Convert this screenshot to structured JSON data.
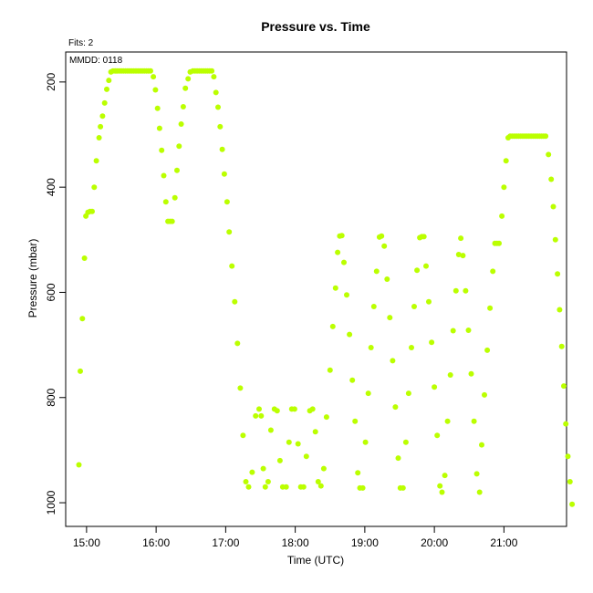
{
  "fits_label": "Fits: 2",
  "chart_data": {
    "type": "scatter",
    "title": "Pressure  vs. Time",
    "xlabel": "Time (UTC)",
    "ylabel": "Pressure (mbar)",
    "annotation": "MMDD: 0118",
    "xlim": [
      14.7,
      21.9
    ],
    "ylim": [
      1045,
      143
    ],
    "y_reversed": true,
    "x_ticks": [
      15,
      16,
      17,
      18,
      19,
      20,
      21
    ],
    "x_tick_labels": [
      "15:00",
      "16:00",
      "17:00",
      "18:00",
      "19:00",
      "20:00",
      "21:00"
    ],
    "y_ticks": [
      200,
      400,
      600,
      800,
      1000
    ],
    "y_tick_labels": [
      "200",
      "400",
      "600",
      "800",
      "1000"
    ],
    "grid": false,
    "color": "#bbff00",
    "series": [
      {
        "points": [
          [
            14.89,
            928
          ],
          [
            14.91,
            750
          ],
          [
            14.94,
            650
          ],
          [
            14.97,
            535
          ],
          [
            14.99,
            455
          ],
          [
            15.02,
            448
          ],
          [
            15.05,
            446
          ],
          [
            15.08,
            446
          ],
          [
            15.11,
            400
          ],
          [
            15.14,
            350
          ],
          [
            15.18,
            306
          ],
          [
            15.2,
            285
          ],
          [
            15.23,
            265
          ],
          [
            15.26,
            240
          ],
          [
            15.29,
            214
          ],
          [
            15.32,
            197
          ],
          [
            15.35,
            181
          ],
          [
            15.38,
            179
          ],
          [
            15.41,
            179
          ],
          [
            15.44,
            179
          ],
          [
            15.47,
            179
          ],
          [
            15.5,
            179
          ],
          [
            15.53,
            179
          ],
          [
            15.56,
            179
          ],
          [
            15.59,
            179
          ],
          [
            15.62,
            179
          ],
          [
            15.65,
            179
          ],
          [
            15.68,
            179
          ],
          [
            15.71,
            179
          ],
          [
            15.74,
            179
          ],
          [
            15.77,
            179
          ],
          [
            15.8,
            179
          ],
          [
            15.83,
            179
          ],
          [
            15.86,
            179
          ],
          [
            15.89,
            179
          ],
          [
            15.92,
            179
          ],
          [
            15.96,
            190
          ],
          [
            15.99,
            215
          ],
          [
            16.02,
            250
          ],
          [
            16.05,
            288
          ],
          [
            16.08,
            330
          ],
          [
            16.11,
            378
          ],
          [
            16.14,
            428
          ],
          [
            16.17,
            465
          ],
          [
            16.2,
            465
          ],
          [
            16.23,
            465
          ],
          [
            16.27,
            420
          ],
          [
            16.3,
            368
          ],
          [
            16.33,
            322
          ],
          [
            16.36,
            280
          ],
          [
            16.39,
            247
          ],
          [
            16.42,
            212
          ],
          [
            16.46,
            194
          ],
          [
            16.49,
            181
          ],
          [
            16.53,
            179
          ],
          [
            16.56,
            179
          ],
          [
            16.59,
            179
          ],
          [
            16.62,
            179
          ],
          [
            16.65,
            179
          ],
          [
            16.68,
            179
          ],
          [
            16.71,
            179
          ],
          [
            16.74,
            179
          ],
          [
            16.77,
            179
          ],
          [
            16.8,
            179
          ],
          [
            16.83,
            190
          ],
          [
            16.86,
            220
          ],
          [
            16.89,
            248
          ],
          [
            16.92,
            285
          ],
          [
            16.95,
            328
          ],
          [
            16.98,
            375
          ],
          [
            17.02,
            428
          ],
          [
            17.05,
            485
          ],
          [
            17.09,
            550
          ],
          [
            17.13,
            618
          ],
          [
            17.17,
            697
          ],
          [
            17.21,
            782
          ],
          [
            17.25,
            872
          ],
          [
            17.29,
            960
          ],
          [
            17.33,
            970
          ],
          [
            17.38,
            942
          ],
          [
            17.43,
            835
          ],
          [
            17.48,
            822
          ],
          [
            17.51,
            835
          ],
          [
            17.54,
            935
          ],
          [
            17.57,
            970
          ],
          [
            17.61,
            960
          ],
          [
            17.65,
            862
          ],
          [
            17.7,
            822
          ],
          [
            17.74,
            825
          ],
          [
            17.78,
            920
          ],
          [
            17.82,
            970
          ],
          [
            17.87,
            970
          ],
          [
            17.91,
            885
          ],
          [
            17.95,
            822
          ],
          [
            17.99,
            822
          ],
          [
            18.04,
            888
          ],
          [
            18.08,
            970
          ],
          [
            18.12,
            970
          ],
          [
            18.16,
            912
          ],
          [
            18.21,
            825
          ],
          [
            18.25,
            822
          ],
          [
            18.29,
            865
          ],
          [
            18.33,
            960
          ],
          [
            18.37,
            968
          ],
          [
            18.41,
            935
          ],
          [
            18.45,
            837
          ],
          [
            18.5,
            748
          ],
          [
            18.54,
            665
          ],
          [
            18.58,
            592
          ],
          [
            18.61,
            524
          ],
          [
            18.64,
            493
          ],
          [
            18.67,
            492
          ],
          [
            18.7,
            543
          ],
          [
            18.74,
            605
          ],
          [
            18.78,
            680
          ],
          [
            18.82,
            767
          ],
          [
            18.86,
            845
          ],
          [
            18.9,
            943
          ],
          [
            18.93,
            972
          ],
          [
            18.97,
            972
          ],
          [
            19.01,
            885
          ],
          [
            19.05,
            792
          ],
          [
            19.09,
            705
          ],
          [
            19.13,
            627
          ],
          [
            19.17,
            560
          ],
          [
            19.21,
            495
          ],
          [
            19.24,
            493
          ],
          [
            19.28,
            512
          ],
          [
            19.32,
            575
          ],
          [
            19.36,
            648
          ],
          [
            19.4,
            730
          ],
          [
            19.44,
            818
          ],
          [
            19.48,
            915
          ],
          [
            19.51,
            972
          ],
          [
            19.55,
            972
          ],
          [
            19.59,
            885
          ],
          [
            19.63,
            792
          ],
          [
            19.67,
            705
          ],
          [
            19.71,
            627
          ],
          [
            19.75,
            558
          ],
          [
            19.79,
            496
          ],
          [
            19.82,
            494
          ],
          [
            19.85,
            494
          ],
          [
            19.88,
            550
          ],
          [
            19.92,
            618
          ],
          [
            19.96,
            695
          ],
          [
            20.0,
            780
          ],
          [
            20.04,
            872
          ],
          [
            20.08,
            968
          ],
          [
            20.11,
            980
          ],
          [
            20.15,
            948
          ],
          [
            20.19,
            845
          ],
          [
            20.23,
            757
          ],
          [
            20.27,
            673
          ],
          [
            20.31,
            597
          ],
          [
            20.35,
            528
          ],
          [
            20.38,
            497
          ],
          [
            20.41,
            530
          ],
          [
            20.45,
            597
          ],
          [
            20.49,
            672
          ],
          [
            20.53,
            755
          ],
          [
            20.57,
            845
          ],
          [
            20.61,
            945
          ],
          [
            20.65,
            980
          ],
          [
            20.68,
            890
          ],
          [
            20.72,
            795
          ],
          [
            20.76,
            710
          ],
          [
            20.8,
            630
          ],
          [
            20.84,
            560
          ],
          [
            20.87,
            507
          ],
          [
            20.9,
            507
          ],
          [
            20.93,
            507
          ],
          [
            20.97,
            455
          ],
          [
            21.0,
            400
          ],
          [
            21.03,
            350
          ],
          [
            21.06,
            306
          ],
          [
            21.09,
            303
          ],
          [
            21.12,
            303
          ],
          [
            21.15,
            303
          ],
          [
            21.18,
            303
          ],
          [
            21.21,
            303
          ],
          [
            21.24,
            303
          ],
          [
            21.27,
            303
          ],
          [
            21.3,
            303
          ],
          [
            21.33,
            303
          ],
          [
            21.36,
            303
          ],
          [
            21.39,
            303
          ],
          [
            21.42,
            303
          ],
          [
            21.45,
            303
          ],
          [
            21.48,
            303
          ],
          [
            21.51,
            303
          ],
          [
            21.54,
            303
          ],
          [
            21.57,
            303
          ],
          [
            21.6,
            303
          ],
          [
            21.64,
            338
          ],
          [
            21.68,
            385
          ],
          [
            21.71,
            437
          ],
          [
            21.74,
            500
          ],
          [
            21.77,
            565
          ],
          [
            21.8,
            633
          ],
          [
            21.83,
            703
          ],
          [
            21.86,
            778
          ],
          [
            21.89,
            850
          ],
          [
            21.92,
            912
          ],
          [
            21.95,
            960
          ],
          [
            21.98,
            1003
          ]
        ]
      }
    ]
  }
}
